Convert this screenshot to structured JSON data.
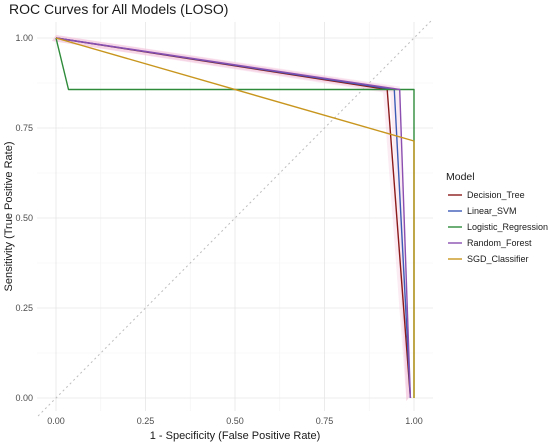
{
  "chart_data": {
    "type": "line",
    "title": "ROC Curves for All Models (LOSO)",
    "xlabel": "1 - Specificity (False Positive Rate)",
    "ylabel": "Sensitivity (True Positive Rate)",
    "xlim": [
      0,
      1
    ],
    "ylim": [
      0,
      1
    ],
    "x_ticks": [
      "0.00",
      "0.25",
      "0.50",
      "0.75",
      "1.00"
    ],
    "y_ticks": [
      "0.00",
      "0.25",
      "0.50",
      "0.75",
      "1.00"
    ],
    "grid": true,
    "legend": {
      "title": "Model",
      "position": "right"
    },
    "reference_line": {
      "from": [
        0,
        0
      ],
      "to": [
        1,
        1
      ],
      "style": "dotted"
    },
    "series": [
      {
        "name": "Decision_Tree",
        "color": "#8b1a1a",
        "x": [
          0,
          0.925,
          0.99
        ],
        "y": [
          1,
          0.857,
          0
        ]
      },
      {
        "name": "Linear_SVM",
        "color": "#3b5bb5",
        "x": [
          0,
          0.945,
          0.99
        ],
        "y": [
          1,
          0.857,
          0
        ]
      },
      {
        "name": "Logistic_Regression",
        "color": "#2e8b3a",
        "x": [
          0,
          0.035,
          1.0,
          1.0
        ],
        "y": [
          1,
          0.857,
          0.857,
          0
        ]
      },
      {
        "name": "Random_Forest",
        "color": "#8a4fb0",
        "x": [
          0,
          0.96,
          0.99
        ],
        "y": [
          1,
          0.857,
          0
        ]
      },
      {
        "name": "SGD_Classifier",
        "color": "#c8961e",
        "x": [
          0,
          1.0,
          1.0
        ],
        "y": [
          1,
          0.714,
          0
        ]
      }
    ]
  }
}
